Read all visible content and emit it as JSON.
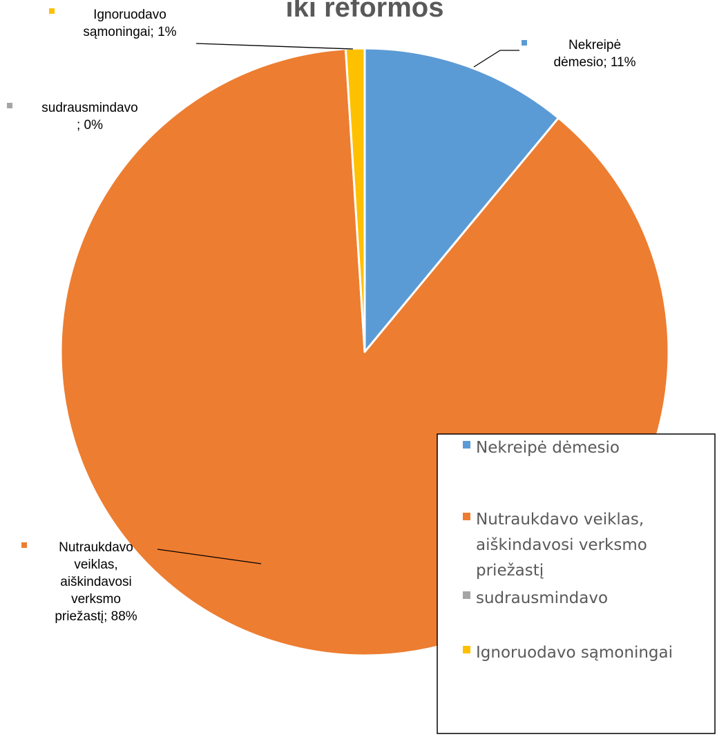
{
  "chart_data": {
    "type": "pie",
    "title": "iki reformos",
    "slices": [
      {
        "name": "Nekreipė dėmesio",
        "value": 11,
        "color": "#5B9BD5",
        "label_lines": [
          "Nekreipė",
          "dėmesio; 11%"
        ],
        "legend_lines": [
          "Nekreipė dėmesio"
        ]
      },
      {
        "name": "Nutraukdavo veiklas, aiškindavosi verksmo priežastį",
        "value": 88,
        "color": "#ED7D31",
        "label_lines": [
          "Nutraukdavo",
          "veiklas,",
          "aiškindavosi",
          "verksmo",
          "priežastį; 88%"
        ],
        "legend_lines": [
          "Nutraukdavo veiklas,",
          "aiškindavosi verksmo",
          "priežastį"
        ]
      },
      {
        "name": "sudrausmindavo",
        "value": 0,
        "color": "#A5A5A5",
        "label_lines": [
          "sudrausmindavo",
          "; 0%"
        ],
        "legend_lines": [
          "sudrausmindavo"
        ]
      },
      {
        "name": "Ignoruodavo sąmoningai",
        "value": 1,
        "color": "#FFC000",
        "label_lines": [
          "Ignoruodavo",
          "sąmoningai; 1%"
        ],
        "legend_lines": [
          "Ignoruodavo sąmoningai"
        ]
      }
    ],
    "legend_position": "right"
  }
}
